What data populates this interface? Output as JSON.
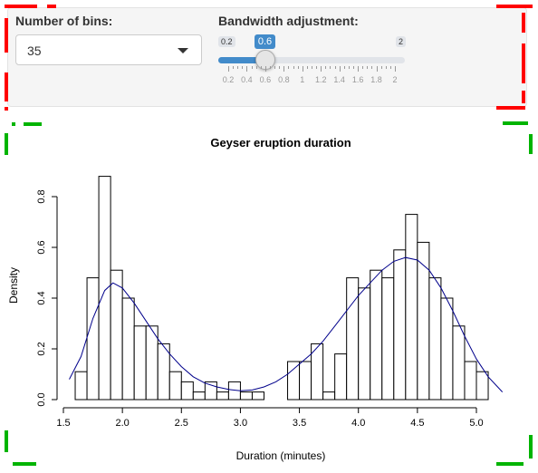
{
  "controls": {
    "bins_label": "Number of bins:",
    "bins_value": "35",
    "bandwidth_label": "Bandwidth adjustment:",
    "slider": {
      "min": 0.2,
      "max": 2,
      "value": 0.6,
      "min_label": "0.2",
      "max_label": "2",
      "value_label": "0.6",
      "grid_labels": [
        "0.2",
        "0.4",
        "0.6",
        "0.8",
        "1",
        "1.2",
        "1.4",
        "1.6",
        "1.8",
        "2"
      ]
    }
  },
  "colors": {
    "accent": "#428bca",
    "density_line": "#00008b",
    "annotation_red": "#ff0000",
    "annotation_green": "#00b400"
  },
  "chart_data": {
    "type": "bar",
    "title": "Geyser eruption duration",
    "xlabel": "Duration (minutes)",
    "ylabel": "Density",
    "xlim": [
      1.5,
      5.25
    ],
    "ylim": [
      0,
      0.9
    ],
    "xticks": [
      "1.5",
      "2.0",
      "2.5",
      "3.0",
      "3.5",
      "4.0",
      "4.5",
      "5.0"
    ],
    "yticks": [
      "0.0",
      "0.2",
      "0.4",
      "0.6",
      "0.8"
    ],
    "bin_width": 0.1,
    "bins_start": 1.6,
    "densities": [
      0.11,
      0.48,
      0.88,
      0.51,
      0.4,
      0.29,
      0.29,
      0.22,
      0.11,
      0.07,
      0.03,
      0.07,
      0.03,
      0.07,
      0.03,
      0.03,
      0.0,
      0.0,
      0.15,
      0.15,
      0.22,
      0.03,
      0.18,
      0.48,
      0.44,
      0.51,
      0.48,
      0.59,
      0.73,
      0.62,
      0.48,
      0.4,
      0.29,
      0.15,
      0.11
    ],
    "density_curve": [
      [
        1.55,
        0.08
      ],
      [
        1.65,
        0.17
      ],
      [
        1.75,
        0.32
      ],
      [
        1.85,
        0.43
      ],
      [
        1.92,
        0.46
      ],
      [
        2.0,
        0.44
      ],
      [
        2.1,
        0.38
      ],
      [
        2.2,
        0.31
      ],
      [
        2.3,
        0.24
      ],
      [
        2.4,
        0.18
      ],
      [
        2.5,
        0.13
      ],
      [
        2.6,
        0.09
      ],
      [
        2.7,
        0.065
      ],
      [
        2.8,
        0.05
      ],
      [
        2.9,
        0.04
      ],
      [
        3.0,
        0.035
      ],
      [
        3.1,
        0.038
      ],
      [
        3.2,
        0.05
      ],
      [
        3.3,
        0.07
      ],
      [
        3.4,
        0.1
      ],
      [
        3.5,
        0.14
      ],
      [
        3.6,
        0.18
      ],
      [
        3.7,
        0.23
      ],
      [
        3.8,
        0.29
      ],
      [
        3.9,
        0.35
      ],
      [
        4.0,
        0.41
      ],
      [
        4.1,
        0.46
      ],
      [
        4.2,
        0.51
      ],
      [
        4.3,
        0.545
      ],
      [
        4.4,
        0.56
      ],
      [
        4.5,
        0.55
      ],
      [
        4.6,
        0.51
      ],
      [
        4.7,
        0.44
      ],
      [
        4.8,
        0.35
      ],
      [
        4.9,
        0.25
      ],
      [
        5.0,
        0.16
      ],
      [
        5.1,
        0.09
      ],
      [
        5.22,
        0.03
      ]
    ]
  }
}
